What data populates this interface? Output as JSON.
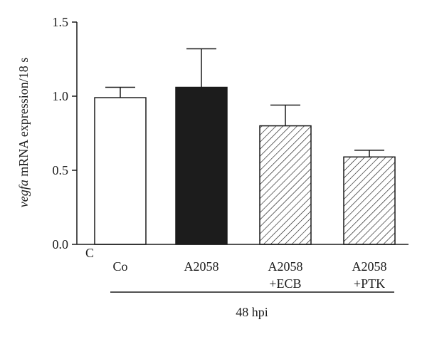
{
  "chart_data": {
    "type": "bar",
    "ylabel_italic": "vegfa",
    "ylabel_rest": " mRNA expression/18 s",
    "ylim": [
      0,
      1.5
    ],
    "yticks": [
      "0.0",
      "0.5",
      "1.0",
      "1.5"
    ],
    "ytick_values": [
      0,
      0.5,
      1.0,
      1.5
    ],
    "corner_label": "C",
    "group_label": "48 hpi",
    "bars": [
      {
        "label_lines": [
          "Co"
        ],
        "value": 0.99,
        "error": 0.07,
        "fill": "white"
      },
      {
        "label_lines": [
          "A2058"
        ],
        "value": 1.06,
        "error": 0.26,
        "fill": "black"
      },
      {
        "label_lines": [
          "A2058",
          "+ECB"
        ],
        "value": 0.8,
        "error": 0.14,
        "fill": "hatch"
      },
      {
        "label_lines": [
          "A2058",
          "+PTK"
        ],
        "value": 0.59,
        "error": 0.045,
        "fill": "hatch"
      }
    ],
    "colors": {
      "axis": "#1a1a1a",
      "solid_bar": "#1c1c1c",
      "open_bar": "#ffffff"
    }
  }
}
